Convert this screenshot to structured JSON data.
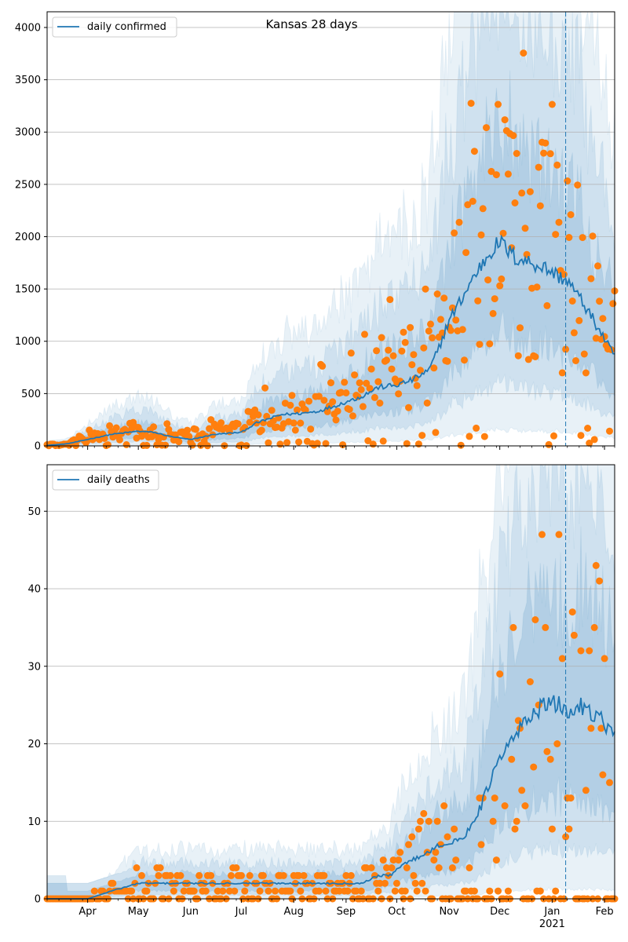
{
  "title": "Kansas 28 days",
  "x_tick_labels": [
    "Apr",
    "May",
    "Jun",
    "Jul",
    "Aug",
    "Sep",
    "Oct",
    "Nov",
    "Dec",
    "Jan",
    "Feb"
  ],
  "x_year_label": "2021",
  "colors": {
    "line": "#1f77b4",
    "band": "#1f77b4",
    "points": "#ff7f0e",
    "grid": "#b0b0b0",
    "vline": "#1f77b4"
  },
  "chart_data": [
    {
      "type": "line",
      "panel": "top",
      "series": [
        {
          "name": "daily confirmed",
          "values": [
            5,
            20,
            110,
            140,
            130,
            90,
            60,
            110,
            130,
            220,
            300,
            310,
            330,
            380,
            420,
            470,
            560,
            580,
            630,
            720,
            900,
            1200,
            1450,
            1600,
            1850,
            1950,
            1800,
            1750,
            1700,
            1620,
            1580,
            1350,
            1050,
            850
          ]
        }
      ],
      "x": [
        "2020-03-08",
        "2020-03-20",
        "2020-04-15",
        "2020-05-01",
        "2020-05-10",
        "2020-05-20",
        "2020-06-01",
        "2020-06-15",
        "2020-07-01",
        "2020-07-10",
        "2020-07-25",
        "2020-08-05",
        "2020-08-15",
        "2020-08-25",
        "2020-09-01",
        "2020-09-10",
        "2020-09-20",
        "2020-10-01",
        "2020-10-10",
        "2020-10-20",
        "2020-10-25",
        "2020-11-01",
        "2020-11-10",
        "2020-11-15",
        "2020-11-25",
        "2020-12-01",
        "2020-12-10",
        "2020-12-20",
        "2020-12-28",
        "2021-01-05",
        "2021-01-10",
        "2021-01-20",
        "2021-01-31",
        "2021-02-07"
      ],
      "forecast_start": "2021-01-09",
      "ylim": [
        0,
        4150
      ],
      "yticks": [
        0,
        500,
        1000,
        1500,
        2000,
        2500,
        3000,
        3500,
        4000
      ],
      "xlabel": "",
      "ylabel": "",
      "grid": true,
      "legend": "top-left"
    },
    {
      "type": "line",
      "panel": "bottom",
      "series": [
        {
          "name": "daily deaths",
          "values": [
            0,
            0,
            1,
            2,
            2,
            2,
            2,
            2,
            2,
            2,
            2,
            2,
            2,
            3,
            3,
            4,
            5,
            6,
            7,
            7,
            8,
            10,
            12,
            15,
            18,
            21,
            24,
            25,
            25,
            24,
            25,
            23,
            21
          ]
        }
      ],
      "x": [
        "2020-03-08",
        "2020-04-01",
        "2020-04-15",
        "2020-05-01",
        "2020-05-15",
        "2020-06-01",
        "2020-06-15",
        "2020-07-01",
        "2020-07-15",
        "2020-08-01",
        "2020-08-15",
        "2020-09-01",
        "2020-09-10",
        "2020-09-20",
        "2020-09-28",
        "2020-10-01",
        "2020-10-10",
        "2020-10-20",
        "2020-10-25",
        "2020-11-01",
        "2020-11-10",
        "2020-11-15",
        "2020-11-20",
        "2020-11-25",
        "2020-12-01",
        "2020-12-10",
        "2020-12-20",
        "2020-12-28",
        "2021-01-05",
        "2021-01-10",
        "2021-01-20",
        "2021-01-31",
        "2021-02-07"
      ],
      "forecast_start": "2021-01-09",
      "ylim": [
        0,
        56
      ],
      "yticks": [
        0,
        10,
        20,
        30,
        40,
        50
      ],
      "xlabel": "",
      "ylabel": "",
      "grid": true,
      "legend": "top-left"
    }
  ]
}
